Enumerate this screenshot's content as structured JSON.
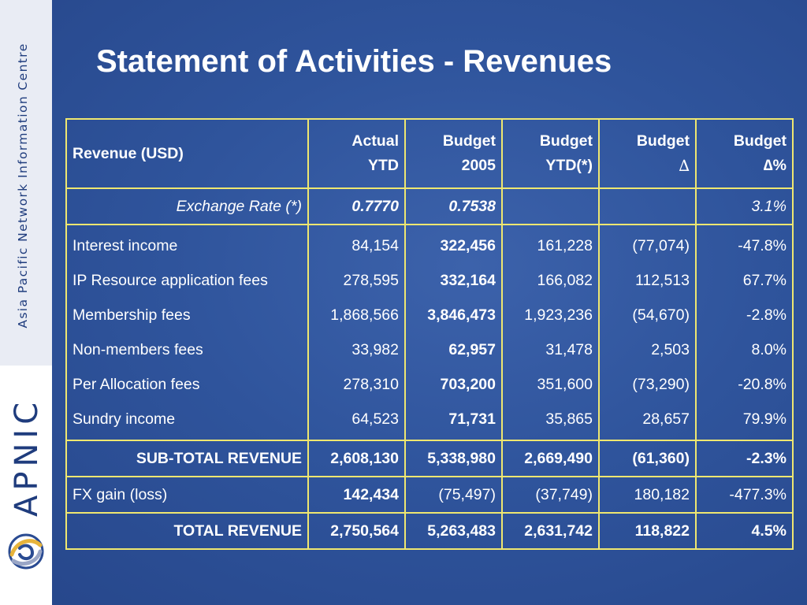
{
  "slide": {
    "title": "Statement of Activities - Revenues"
  },
  "sidebar": {
    "org_name": "Asia Pacific Network Information Centre",
    "brand": "APNIC",
    "logo_icon": "apnic-globe-logo"
  },
  "table": {
    "headers": {
      "category": "Revenue (USD)",
      "actual_ytd_1": "Actual",
      "actual_ytd_2": "YTD",
      "budget_2005_1": "Budget",
      "budget_2005_2": "2005",
      "budget_ytd_1": "Budget",
      "budget_ytd_2": "YTD(*)",
      "budget_delta_1": "Budget",
      "budget_delta_2": "∆",
      "budget_delta_pct_1": "Budget",
      "budget_delta_pct_2": "∆%"
    },
    "exchange_rate": {
      "label": "Exchange Rate (*)",
      "actual_ytd": "0.7770",
      "budget_2005": "0.7538",
      "budget_ytd": "",
      "budget_delta": "",
      "budget_delta_pct": "3.1%"
    },
    "rows": [
      {
        "label": "Interest income",
        "actual_ytd": "84,154",
        "budget_2005": "322,456",
        "budget_ytd": "161,228",
        "budget_delta": "(77,074)",
        "budget_delta_pct": "-47.8%"
      },
      {
        "label": "IP Resource application fees",
        "actual_ytd": "278,595",
        "budget_2005": "332,164",
        "budget_ytd": "166,082",
        "budget_delta": "112,513",
        "budget_delta_pct": "67.7%"
      },
      {
        "label": "Membership fees",
        "actual_ytd": "1,868,566",
        "budget_2005": "3,846,473",
        "budget_ytd": "1,923,236",
        "budget_delta": "(54,670)",
        "budget_delta_pct": "-2.8%"
      },
      {
        "label": "Non-members fees",
        "actual_ytd": "33,982",
        "budget_2005": "62,957",
        "budget_ytd": "31,478",
        "budget_delta": "2,503",
        "budget_delta_pct": "8.0%"
      },
      {
        "label": "Per Allocation fees",
        "actual_ytd": "278,310",
        "budget_2005": "703,200",
        "budget_ytd": "351,600",
        "budget_delta": "(73,290)",
        "budget_delta_pct": "-20.8%"
      },
      {
        "label": "Sundry income",
        "actual_ytd": "64,523",
        "budget_2005": "71,731",
        "budget_ytd": "35,865",
        "budget_delta": "28,657",
        "budget_delta_pct": "79.9%"
      }
    ],
    "subtotal": {
      "label": "SUB-TOTAL REVENUE",
      "actual_ytd": "2,608,130",
      "budget_2005": "5,338,980",
      "budget_ytd": "2,669,490",
      "budget_delta": "(61,360)",
      "budget_delta_pct": "-2.3%"
    },
    "fx_gain": {
      "label": "FX gain (loss)",
      "actual_ytd": "142,434",
      "budget_2005": "(75,497)",
      "budget_ytd": "(37,749)",
      "budget_delta": "180,182",
      "budget_delta_pct": "-477.3%"
    },
    "total": {
      "label": "TOTAL REVENUE",
      "actual_ytd": "2,750,564",
      "budget_2005": "5,263,483",
      "budget_ytd": "2,631,742",
      "budget_delta": "118,822",
      "budget_delta_pct": "4.5%"
    }
  }
}
